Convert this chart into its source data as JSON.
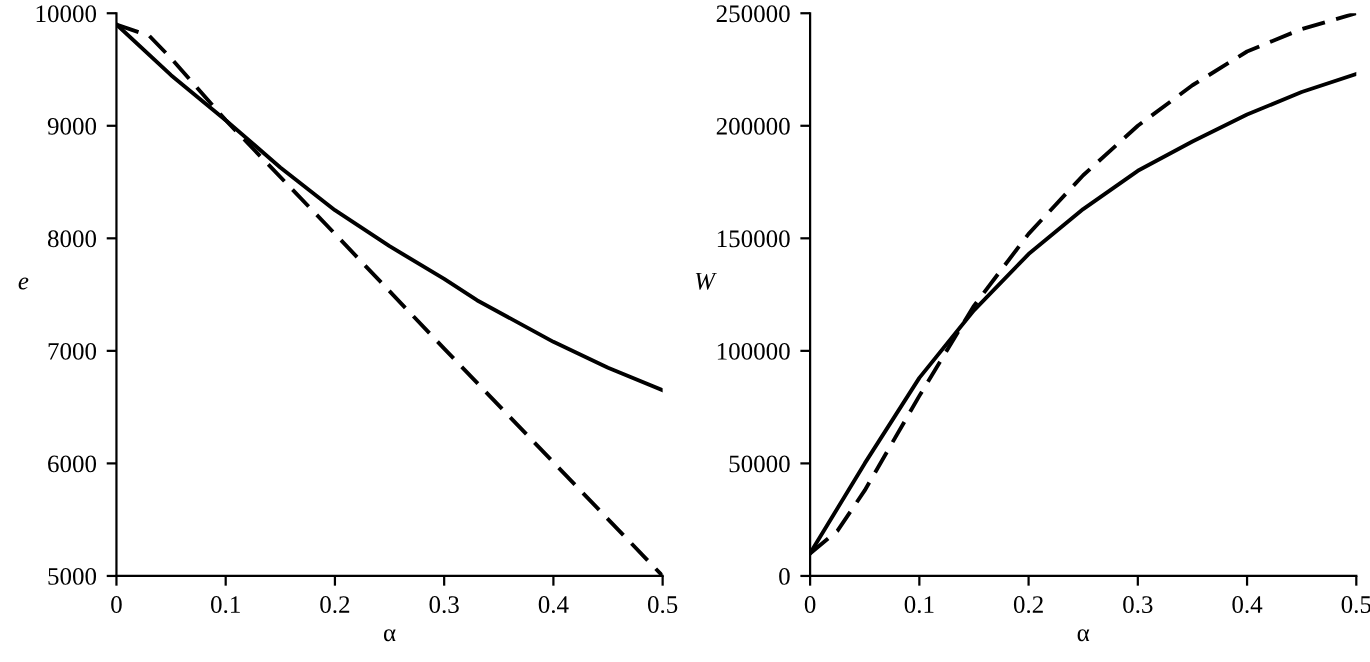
{
  "chart_data": [
    {
      "type": "line",
      "xlabel": "α",
      "ylabel": "e",
      "xlim": [
        0,
        0.5
      ],
      "ylim": [
        5000,
        10000
      ],
      "xticks": [
        0,
        0.1,
        0.2,
        0.3,
        0.4,
        0.5
      ],
      "yticks": [
        5000,
        6000,
        7000,
        8000,
        9000,
        10000
      ],
      "grid": false,
      "legend": false,
      "series": [
        {
          "color": "#000000",
          "line_style": "solid",
          "x": [
            0,
            0.05,
            0.1,
            0.15,
            0.2,
            0.25,
            0.3,
            0.33,
            0.4,
            0.45,
            0.5
          ],
          "values": [
            9900,
            9450,
            9050,
            8630,
            8250,
            7930,
            7640,
            7450,
            7080,
            6850,
            6650
          ]
        },
        {
          "color": "#000000",
          "line_style": "dashed",
          "x": [
            0,
            0.03,
            0.05,
            0.1,
            0.2,
            0.3,
            0.4,
            0.5
          ],
          "values": [
            9900,
            9800,
            9600,
            9050,
            8040,
            7020,
            6010,
            5000
          ]
        }
      ]
    },
    {
      "type": "line",
      "xlabel": "α",
      "ylabel": "W",
      "xlim": [
        0,
        0.5
      ],
      "ylim": [
        0,
        250000
      ],
      "xticks": [
        0,
        0.1,
        0.2,
        0.3,
        0.4,
        0.5
      ],
      "yticks": [
        0,
        50000,
        100000,
        150000,
        200000,
        250000
      ],
      "grid": false,
      "legend": false,
      "series": [
        {
          "color": "#000000",
          "line_style": "solid",
          "x": [
            0,
            0.05,
            0.1,
            0.15,
            0.2,
            0.25,
            0.3,
            0.35,
            0.4,
            0.45,
            0.5
          ],
          "values": [
            10000,
            50000,
            88000,
            118000,
            143000,
            163000,
            180000,
            193000,
            205000,
            215000,
            223000
          ]
        },
        {
          "color": "#000000",
          "line_style": "dashed",
          "x": [
            0,
            0.025,
            0.05,
            0.1,
            0.15,
            0.2,
            0.25,
            0.3,
            0.35,
            0.4,
            0.45,
            0.5
          ],
          "values": [
            10000,
            20000,
            38000,
            80000,
            120000,
            152000,
            178000,
            200000,
            218000,
            233000,
            243000,
            250000
          ]
        }
      ]
    }
  ]
}
